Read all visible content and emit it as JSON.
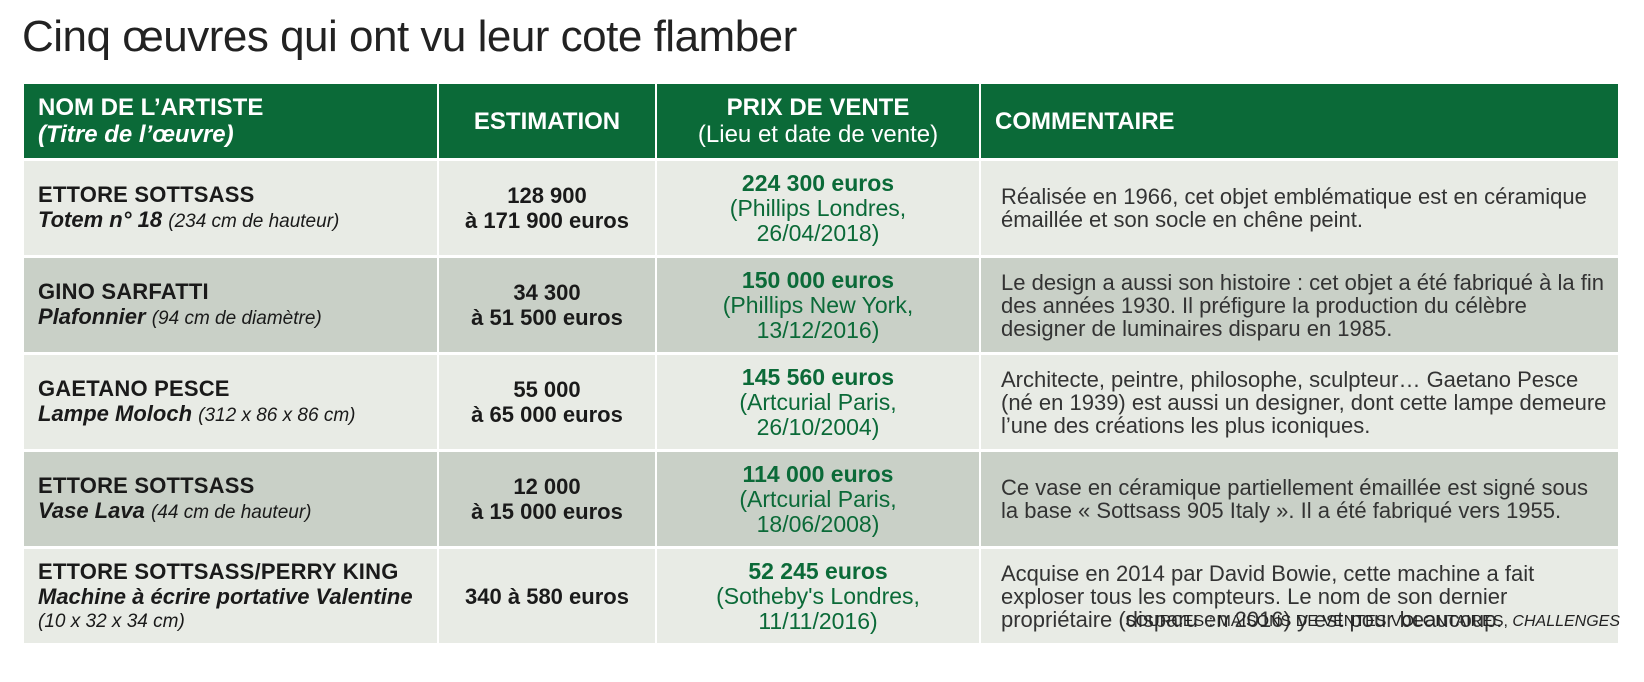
{
  "title": "Cinq œuvres qui ont vu leur cote flamber",
  "header": {
    "artist_line1": "NOM DE L’ARTISTE",
    "artist_line2": "(Titre de l’œuvre)",
    "estimation": "ESTIMATION",
    "price_line1": "PRIX DE VENTE",
    "price_line2": "(Lieu et date de vente)",
    "comment": "COMMENTAIRE"
  },
  "rows": [
    {
      "artist": "ETTORE SOTTSASS",
      "work": "Totem n° 18",
      "dimensions": "(234 cm de hauteur)",
      "estimation_line1": "128 900",
      "estimation_line2": "à 171 900 euros",
      "price": "224 300 euros",
      "venue": "(Phillips Londres,",
      "date": "26/04/2018)",
      "comment": "Réalisée en 1966, cet objet emblématique est en céramique émaillée et son socle en chêne peint."
    },
    {
      "artist": "GINO SARFATTI",
      "work": "Plafonnier",
      "dimensions": "(94 cm de diamètre)",
      "estimation_line1": "34 300",
      "estimation_line2": "à 51 500 euros",
      "price": "150 000 euros",
      "venue": "(Phillips New York,",
      "date": "13/12/2016)",
      "comment": "Le design a aussi son histoire : cet objet a été fabriqué à la fin des années 1930. Il préfigure la production du célèbre designer de luminaires disparu en 1985."
    },
    {
      "artist": "GAETANO PESCE",
      "work": "Lampe Moloch",
      "dimensions": "(312 x 86 x 86 cm)",
      "estimation_line1": "55 000",
      "estimation_line2": "à 65 000 euros",
      "price": "145 560 euros",
      "venue": "(Artcurial Paris,",
      "date": "26/10/2004)",
      "comment": "Architecte, peintre, philosophe, sculpteur… Gaetano Pesce (né en 1939) est aussi un designer, dont cette lampe demeure l’une des créations les plus iconiques."
    },
    {
      "artist": "ETTORE SOTTSASS",
      "work": "Vase Lava",
      "dimensions": "(44 cm de hauteur)",
      "estimation_line1": "12 000",
      "estimation_line2": "à 15 000 euros",
      "price": "114 000 euros",
      "venue": "(Artcurial Paris,",
      "date": "18/06/2008)",
      "comment": "Ce vase en céramique partiellement émaillée est signé sous la base « Sottsass 905 Italy ». Il a été fabriqué vers 1955."
    },
    {
      "artist": "ETTORE SOTTSASS/PERRY KING",
      "work": "Machine à écrire portative Valentine",
      "dimensions": "(10 x 32 x 34 cm)",
      "estimation_line1": "340 à 580 euros",
      "estimation_line2": "",
      "price": "52 245 euros",
      "venue": "(Sotheby's Londres,",
      "date": "11/11/2016)",
      "comment": "Acquise en 2014 par David Bowie, cette machine a fait exploser tous les compteurs. Le nom de son dernier propriétaire (disparu en 2016) y est pour beaucoup."
    }
  ],
  "sources": {
    "prefix": "SOURCES : MAISONS DE VENTES VOLONTAIRES,",
    "publication": "CHALLENGES"
  },
  "colors": {
    "header_green": "#0b6a38",
    "price_green": "#0b6a38",
    "row_light": "#e8ebe5",
    "row_dark": "#c9d0c7"
  }
}
